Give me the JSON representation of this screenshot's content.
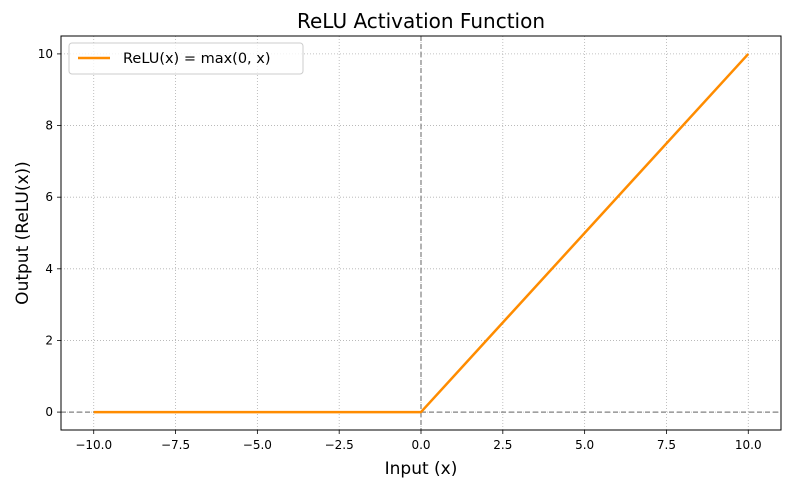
{
  "chart_data": {
    "type": "line",
    "title": "ReLU Activation Function",
    "xlabel": "Input (x)",
    "ylabel": "Output (ReLU(x))",
    "xlim": [
      -11,
      11
    ],
    "ylim": [
      -0.5,
      10.5
    ],
    "xticks": [
      -10.0,
      -7.5,
      -5.0,
      -2.5,
      0.0,
      2.5,
      5.0,
      7.5,
      10.0
    ],
    "xtick_labels": [
      "−10.0",
      "−7.5",
      "−5.0",
      "−2.5",
      "0.0",
      "2.5",
      "5.0",
      "7.5",
      "10.0"
    ],
    "yticks": [
      0,
      2,
      4,
      6,
      8,
      10
    ],
    "ytick_labels": [
      "0",
      "2",
      "4",
      "6",
      "8",
      "10"
    ],
    "grid": true,
    "grid_style": "dotted",
    "reference_lines": {
      "x": 0,
      "y": 0,
      "style": "dashed",
      "color": "#808080"
    },
    "legend_placement": "top-left",
    "series": [
      {
        "name": "ReLU(x) = max(0, x)",
        "color": "#ff8c00",
        "x": [
          -10,
          0,
          10
        ],
        "y": [
          0,
          0,
          10
        ]
      }
    ]
  }
}
